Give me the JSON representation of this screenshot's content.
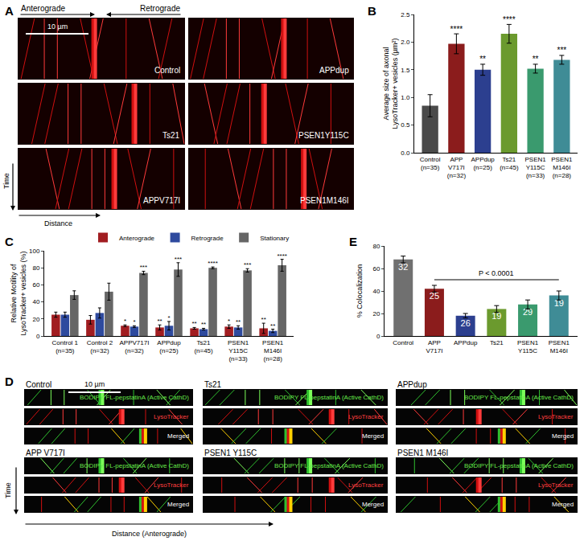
{
  "panel_a": {
    "label": "A",
    "directions": [
      "Anterograde",
      "Retrograde"
    ],
    "scale_bar": "10 µm",
    "axes": [
      "Time",
      "Distance"
    ],
    "conditions": [
      "Control",
      "APPdup",
      "Ts21",
      "PSEN1Y115C",
      "APPV717I",
      "PSEN1M146I"
    ]
  },
  "panel_d": {
    "label": "D",
    "channels": [
      "BODIPY FL-pepstatinA (Active CathD)",
      "LysoTracker",
      "Merged"
    ],
    "scale_bar": "10 µm",
    "axes": [
      "Time",
      "Distance (Anterograde)"
    ],
    "conditions": [
      "Control",
      "Ts21",
      "APPdup",
      "APP V717I",
      "PSEN1 Y115C",
      "PSEN1 M146I"
    ]
  },
  "chart_data": [
    {
      "label": "B",
      "type": "bar",
      "y_label": "Average size of axonal\nLysoTracker+ vesicles (µm²)",
      "categories": [
        "Control\n(n=35)",
        "APP\nV717I\n(n=32)",
        "APPdup\n(n=25)",
        "Ts21\n(n=45)",
        "PSEN1\nY115C\n(n=33)",
        "PSEN1\nM146I\n(n=28)"
      ],
      "values": [
        0.85,
        1.97,
        1.5,
        2.15,
        1.52,
        1.68
      ],
      "errors": [
        0.2,
        0.18,
        0.1,
        0.17,
        0.08,
        0.08
      ],
      "significance": [
        null,
        "****",
        "**",
        "****",
        "**",
        "***"
      ],
      "colors": [
        "#4a4a4a",
        "#8b1c1c",
        "#2c3f8f",
        "#6b9a2e",
        "#3a9a6e",
        "#3f8c96"
      ],
      "ylim": [
        0,
        2.5
      ],
      "yticks": [
        {
          "value": 0,
          "label": "0.0"
        },
        0.5,
        {
          "value": 1,
          "label": "1.0"
        },
        1.5,
        {
          "value": 2,
          "label": "2.0"
        },
        2.5
      ],
      "grid": false
    },
    {
      "label": "C",
      "type": "bar",
      "y_label": "Relative Motility of\nLysoTracker+ vesicles (%)",
      "categories": [
        "Control 1\n(n=35)",
        "Control 2\n(n=32)",
        "APPV717I\n(n=32)",
        "APPdup\n(n=25)",
        "Ts21\n(n=45)",
        "PSEN1\nY115C\n(n=33)",
        "PSEN1\nM146I\n(n=28)"
      ],
      "series": [
        {
          "name": "Anterograde",
          "color": "#a11d21",
          "values": [
            25,
            19,
            12,
            10,
            9,
            11,
            9
          ],
          "errors": [
            3,
            5,
            1,
            3,
            1,
            2,
            6
          ],
          "significance": [
            null,
            null,
            "*",
            "**",
            "**",
            "*",
            "**"
          ]
        },
        {
          "name": "Retrograde",
          "color": "#2e4a9e",
          "values": [
            25,
            27,
            11,
            12,
            8,
            10,
            6
          ],
          "errors": [
            3,
            6,
            1,
            5,
            1,
            2,
            2
          ],
          "significance": [
            null,
            null,
            "*",
            "*",
            "**",
            "**",
            "**"
          ]
        },
        {
          "name": "Stationary",
          "color": "#666666",
          "values": [
            48,
            52,
            74,
            78,
            80,
            77,
            83
          ],
          "errors": [
            5,
            10,
            2,
            8,
            1,
            2,
            7
          ],
          "significance": [
            null,
            null,
            "***",
            "***",
            "****",
            "***",
            "****"
          ]
        }
      ],
      "ylim": [
        0,
        100
      ],
      "yticks": [
        0,
        20,
        40,
        60,
        80,
        100
      ],
      "legend": "top right",
      "grid": false
    },
    {
      "label": "E",
      "type": "bar",
      "y_label": "% Colocalization",
      "categories": [
        "Control",
        "APP\nV717I",
        "APPdup",
        "Ts21",
        "PSEN1\nY115C",
        "PSEN1\nM146I"
      ],
      "values": [
        68,
        42,
        18,
        24,
        28,
        36
      ],
      "errors": [
        3,
        3,
        2,
        3,
        4,
        4
      ],
      "bar_labels": [
        32,
        25,
        26,
        19,
        29,
        19
      ],
      "colors": [
        "#707070",
        "#8b1c1c",
        "#2c3f8f",
        "#6b9a2e",
        "#3a9a6e",
        "#3f8c96"
      ],
      "comparison": {
        "from": "APP\nV717I",
        "to": "PSEN1\nM146I",
        "y": 50,
        "label": "P < 0.0001"
      },
      "ylim": [
        0,
        80
      ],
      "yticks": [
        0,
        20,
        40,
        60,
        80
      ],
      "grid": false
    }
  ]
}
